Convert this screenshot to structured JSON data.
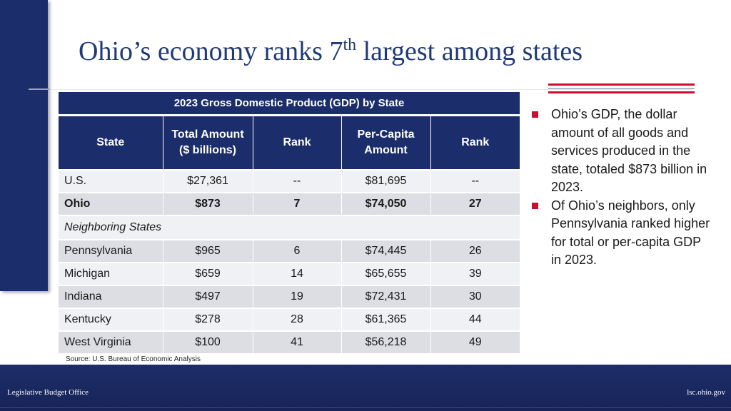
{
  "title": {
    "main": "Ohio’s economy ranks 7",
    "superscript": "th",
    "rest": " largest among states"
  },
  "table": {
    "caption": "2023 Gross Domestic Product (GDP) by State",
    "headers": {
      "state": "State",
      "total_line1": "Total Amount",
      "total_line2": "($ billions)",
      "rank1": "Rank",
      "percap_line1": "Per-Capita",
      "percap_line2": "Amount",
      "rank2": "Rank"
    },
    "us": {
      "state": "U.S.",
      "total": "$27,361",
      "rank": "--",
      "percap": "$81,695",
      "percap_rank": "--"
    },
    "ohio": {
      "state": "Ohio",
      "total": "$873",
      "rank": "7",
      "percap": "$74,050",
      "percap_rank": "27"
    },
    "section_label": "Neighboring States",
    "neighbors": [
      {
        "state": "Pennsylvania",
        "total": "$965",
        "rank": "6",
        "percap": "$74,445",
        "percap_rank": "26"
      },
      {
        "state": "Michigan",
        "total": "$659",
        "rank": "14",
        "percap": "$65,655",
        "percap_rank": "39"
      },
      {
        "state": "Indiana",
        "total": "$497",
        "rank": "19",
        "percap": "$72,431",
        "percap_rank": "30"
      },
      {
        "state": "Kentucky",
        "total": "$278",
        "rank": "28",
        "percap": "$61,365",
        "percap_rank": "44"
      },
      {
        "state": "West Virginia",
        "total": "$100",
        "rank": "41",
        "percap": "$56,218",
        "percap_rank": "49"
      }
    ]
  },
  "source": "Source: U.S. Bureau of Economic Analysis",
  "bullets": [
    "Ohio’s GDP, the dollar amount of all goods and services produced in the state, totaled $873 billion in 2023.",
    "Of Ohio’s neighbors, only Pennsylvania ranked higher for total or per-capita GDP in 2023."
  ],
  "footer": {
    "left": "Legislative Budget Office",
    "right": "lsc.ohio.gov"
  },
  "colors": {
    "navy": "#1b2d6b",
    "accent_red": "#c8102e",
    "title_blue": "#1f3a78"
  }
}
